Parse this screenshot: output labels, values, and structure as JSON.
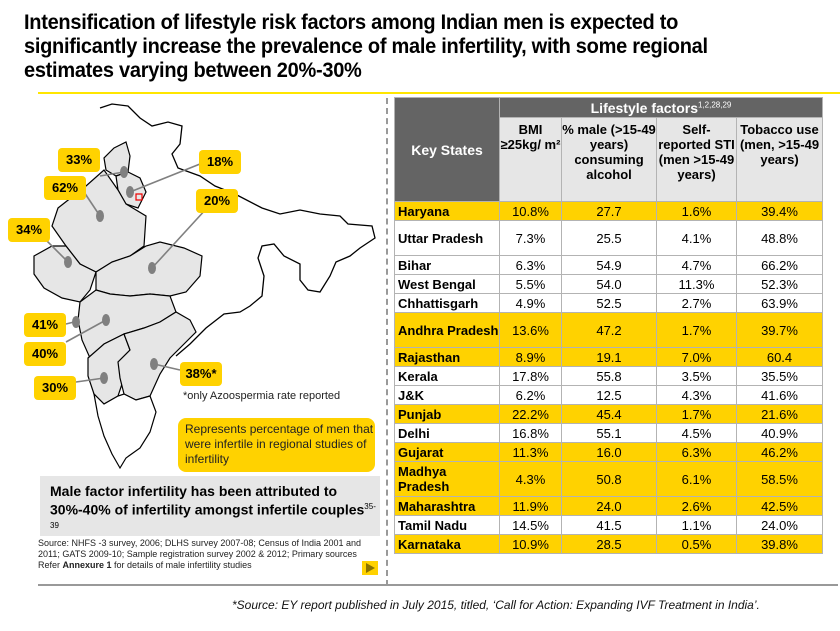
{
  "title": {
    "lines": [
      "Intensification of lifestyle risk factors among Indian men is expected to",
      "significantly increase the prevalence of male infertility, with some regional",
      "estimates varying between 20%-30%"
    ]
  },
  "map": {
    "callouts": [
      {
        "label": "33%",
        "region": "Punjab"
      },
      {
        "label": "18%",
        "region": "Haryana/Delhi"
      },
      {
        "label": "62%",
        "region": "Rajasthan"
      },
      {
        "label": "20%",
        "region": "Madhya Pradesh"
      },
      {
        "label": "34%",
        "region": "Gujarat"
      },
      {
        "label": "41%",
        "region": "Maharashtra (west)"
      },
      {
        "label": "40%",
        "region": "Maharashtra"
      },
      {
        "label": "30%",
        "region": "Karnataka"
      },
      {
        "label": "38%*",
        "region": "Andhra Pradesh"
      }
    ],
    "azoospermia_note": "*only Azoospermia rate reported",
    "legend_text": "Represents percentage of men that were infertile in regional studies of infertility",
    "colors": {
      "callout": "#ffd200",
      "highlighted_state": "#e6e6e6",
      "marker": "#808080"
    }
  },
  "summary": {
    "text": "Male factor infertility has been attributed to 30%-40% of infertility amongst infertile couples",
    "superscript": "35-39"
  },
  "sources": {
    "prefix": "Source: NHFS -3 survey, 2006; DLHS survey 2007-08; Census of India 2001 and 2011; GATS 2009-10; Sample registration survey 2002 & 2012; Primary sources Refer ",
    "bold": "Annexure 1",
    "suffix": " for details of male infertility studies"
  },
  "table": {
    "key_states_header": "Key States",
    "group_header": "Lifestyle factors",
    "group_superscript": "1,2,28,29",
    "columns": [
      "BMI ≥25kg/ m²",
      "% male (>15-49 years) consuming alcohol",
      "Self-reported STI (men >15-49 years)",
      "Tobacco use (men, >15-49 years)"
    ],
    "rows": [
      {
        "state": "Haryana",
        "bmi": "10.8%",
        "alcohol": "27.7",
        "sti": "1.6%",
        "tobacco": "39.4%",
        "highlight": true
      },
      {
        "state": "Uttar Pradesh",
        "bmi": "7.3%",
        "alcohol": "25.5",
        "sti": "4.1%",
        "tobacco": "48.8%",
        "highlight": false
      },
      {
        "state": "Bihar",
        "bmi": "6.3%",
        "alcohol": "54.9",
        "sti": "4.7%",
        "tobacco": "66.2%",
        "highlight": false
      },
      {
        "state": "West Bengal",
        "bmi": "5.5%",
        "alcohol": "54.0",
        "sti": "11.3%",
        "tobacco": "52.3%",
        "highlight": false
      },
      {
        "state": "Chhattisgarh",
        "bmi": "4.9%",
        "alcohol": "52.5",
        "sti": "2.7%",
        "tobacco": "63.9%",
        "highlight": false
      },
      {
        "state": "Andhra Pradesh",
        "bmi": "13.6%",
        "alcohol": "47.2",
        "sti": "1.7%",
        "tobacco": "39.7%",
        "highlight": true
      },
      {
        "state": "Rajasthan",
        "bmi": "8.9%",
        "alcohol": "19.1",
        "sti": "7.0%",
        "tobacco": "60.4",
        "highlight": true
      },
      {
        "state": "Kerala",
        "bmi": "17.8%",
        "alcohol": "55.8",
        "sti": "3.5%",
        "tobacco": "35.5%",
        "highlight": false
      },
      {
        "state": "J&K",
        "bmi": "6.2%",
        "alcohol": "12.5",
        "sti": "4.3%",
        "tobacco": "41.6%",
        "highlight": false
      },
      {
        "state": "Punjab",
        "bmi": "22.2%",
        "alcohol": "45.4",
        "sti": "1.7%",
        "tobacco": "21.6%",
        "highlight": true
      },
      {
        "state": "Delhi",
        "bmi": "16.8%",
        "alcohol": "55.1",
        "sti": "4.5%",
        "tobacco": "40.9%",
        "highlight": false
      },
      {
        "state": "Gujarat",
        "bmi": "11.3%",
        "alcohol": "16.0",
        "sti": "6.3%",
        "tobacco": "46.2%",
        "highlight": true
      },
      {
        "state": "Madhya Pradesh",
        "bmi": "4.3%",
        "alcohol": "50.8",
        "sti": "6.1%",
        "tobacco": "58.5%",
        "highlight": true
      },
      {
        "state": "Maharashtra",
        "bmi": "11.9%",
        "alcohol": "24.0",
        "sti": "2.6%",
        "tobacco": "42.5%",
        "highlight": true
      },
      {
        "state": "Tamil Nadu",
        "bmi": "14.5%",
        "alcohol": "41.5",
        "sti": "1.1%",
        "tobacco": "24.0%",
        "highlight": false
      },
      {
        "state": "Karnataka",
        "bmi": "10.9%",
        "alcohol": "28.5",
        "sti": "0.5%",
        "tobacco": "39.8%",
        "highlight": true
      }
    ],
    "colors": {
      "header_dark": "#646464",
      "header_light": "#e6e6e6",
      "highlight": "#ffd200"
    }
  },
  "footnote": "*Source: EY report published in July 2015, titled, ‘Call for Action: Expanding IVF Treatment in India’."
}
